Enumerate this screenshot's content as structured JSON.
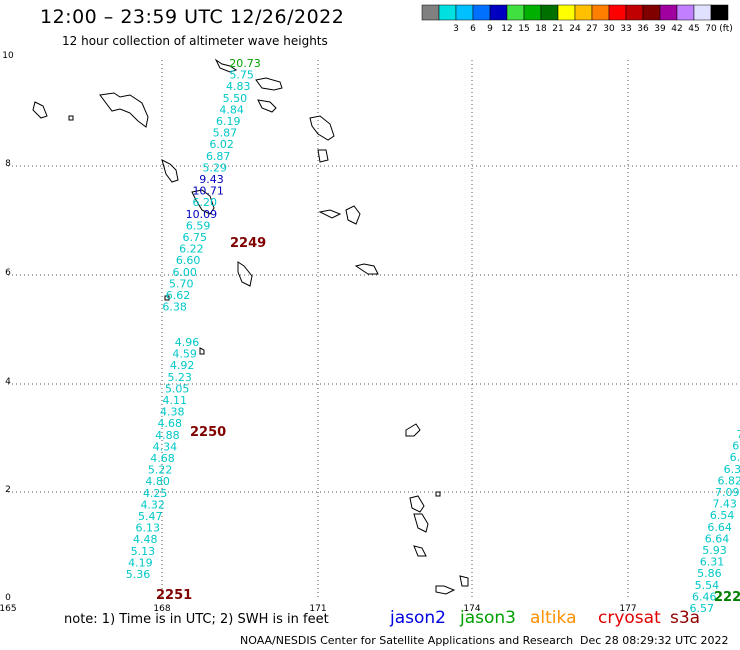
{
  "header": {
    "title": "12:00 – 23:59 UTC 12/26/2022",
    "subtitle": "12 hour collection of altimeter wave heights"
  },
  "legend": {
    "unit": "(ft)",
    "bins": [
      {
        "label": "",
        "color": "#808080"
      },
      {
        "label": "3",
        "color": "#00e0e0"
      },
      {
        "label": "6",
        "color": "#00c0ff"
      },
      {
        "label": "9",
        "color": "#0070ff"
      },
      {
        "label": "12",
        "color": "#0000c0"
      },
      {
        "label": "15",
        "color": "#40e040"
      },
      {
        "label": "18",
        "color": "#00b000"
      },
      {
        "label": "21",
        "color": "#007000"
      },
      {
        "label": "24",
        "color": "#ffff00"
      },
      {
        "label": "27",
        "color": "#ffc000"
      },
      {
        "label": "30",
        "color": "#ff8000"
      },
      {
        "label": "33",
        "color": "#ff0000"
      },
      {
        "label": "36",
        "color": "#c00000"
      },
      {
        "label": "39",
        "color": "#800000"
      },
      {
        "label": "42",
        "color": "#a000a0"
      },
      {
        "label": "45",
        "color": "#c080ff"
      },
      {
        "label": "70",
        "color": "#e0e0ff"
      },
      {
        "label": "",
        "color": "#000000"
      }
    ]
  },
  "axes": {
    "x_ticks": [
      "165",
      "168",
      "171",
      "174",
      "177"
    ],
    "y_ticks": [
      "0",
      "2",
      "4",
      "6",
      "8",
      "10"
    ]
  },
  "tracks": [
    {
      "id": "2249",
      "label_color": "#800000",
      "points": [
        {
          "v": "20.73",
          "c": "#00a000"
        },
        {
          "v": "5.75",
          "c": "#00c8c8"
        },
        {
          "v": "4.83",
          "c": "#00c8c8"
        },
        {
          "v": "5.50",
          "c": "#00c8c8"
        },
        {
          "v": "4.84",
          "c": "#00c8c8"
        },
        {
          "v": "6.19",
          "c": "#00c8c8"
        },
        {
          "v": "5.87",
          "c": "#00c8c8"
        },
        {
          "v": "6.02",
          "c": "#00c8c8"
        },
        {
          "v": "6.87",
          "c": "#00c8c8"
        },
        {
          "v": "5.29",
          "c": "#00c8c8"
        },
        {
          "v": "9.43",
          "c": "#0000c0"
        },
        {
          "v": "10.71",
          "c": "#0000c0"
        },
        {
          "v": "6.20",
          "c": "#00c8c8"
        },
        {
          "v": "10.09",
          "c": "#0000c0"
        },
        {
          "v": "6.59",
          "c": "#00c8c8"
        },
        {
          "v": "6.75",
          "c": "#00c8c8"
        },
        {
          "v": "6.22",
          "c": "#00c8c8"
        },
        {
          "v": "6.60",
          "c": "#00c8c8"
        },
        {
          "v": "6.00",
          "c": "#00c8c8"
        },
        {
          "v": "5.70",
          "c": "#00c8c8"
        },
        {
          "v": "6.62",
          "c": "#00c8c8"
        },
        {
          "v": "6.38",
          "c": "#00c8c8"
        }
      ]
    },
    {
      "id": "2250",
      "label_color": "#800000",
      "points": [
        {
          "v": "4.96",
          "c": "#00c8c8"
        },
        {
          "v": "4.59",
          "c": "#00c8c8"
        },
        {
          "v": "4.92",
          "c": "#00c8c8"
        },
        {
          "v": "5.23",
          "c": "#00c8c8"
        },
        {
          "v": "5.05",
          "c": "#00c8c8"
        },
        {
          "v": "4.11",
          "c": "#00c8c8"
        },
        {
          "v": "4.38",
          "c": "#00c8c8"
        },
        {
          "v": "4.68",
          "c": "#00c8c8"
        },
        {
          "v": "4.88",
          "c": "#00c8c8"
        },
        {
          "v": "4.34",
          "c": "#00c8c8"
        },
        {
          "v": "4.68",
          "c": "#00c8c8"
        },
        {
          "v": "5.22",
          "c": "#00c8c8"
        },
        {
          "v": "4.80",
          "c": "#00c8c8"
        },
        {
          "v": "4.25",
          "c": "#00c8c8"
        },
        {
          "v": "4.32",
          "c": "#00c8c8"
        },
        {
          "v": "5.47",
          "c": "#00c8c8"
        },
        {
          "v": "6.13",
          "c": "#00c8c8"
        },
        {
          "v": "4.48",
          "c": "#00c8c8"
        },
        {
          "v": "5.13",
          "c": "#00c8c8"
        },
        {
          "v": "4.19",
          "c": "#00c8c8"
        },
        {
          "v": "5.36",
          "c": "#00c8c8"
        }
      ]
    },
    {
      "id": "2251",
      "label_color": "#800000",
      "points": []
    },
    {
      "id": "222",
      "label_color": "#008000",
      "points": [
        {
          "v": "7",
          "c": "#00c8c8"
        },
        {
          "v": "6.",
          "c": "#00c8c8"
        },
        {
          "v": "6.",
          "c": "#00c8c8"
        },
        {
          "v": "6.3",
          "c": "#00c8c8"
        },
        {
          "v": "6.82",
          "c": "#00c8c8"
        },
        {
          "v": "7.09",
          "c": "#00c8c8"
        },
        {
          "v": "7.43",
          "c": "#00c8c8"
        },
        {
          "v": "6.54",
          "c": "#00c8c8"
        },
        {
          "v": "6.64",
          "c": "#00c8c8"
        },
        {
          "v": "6.64",
          "c": "#00c8c8"
        },
        {
          "v": "5.93",
          "c": "#00c8c8"
        },
        {
          "v": "6.31",
          "c": "#00c8c8"
        },
        {
          "v": "5.86",
          "c": "#00c8c8"
        },
        {
          "v": "5.54",
          "c": "#00c8c8"
        },
        {
          "v": "6.46",
          "c": "#00c8c8"
        },
        {
          "v": "6.57",
          "c": "#00c8c8"
        }
      ]
    }
  ],
  "footer": {
    "note": "note:  1) Time is in UTC; 2) SWH is in feet",
    "satellites": [
      {
        "name": "jason2",
        "color": "#0000e0"
      },
      {
        "name": "jason3",
        "color": "#00a000"
      },
      {
        "name": "altika",
        "color": "#ff9000"
      },
      {
        "name": "cryosat",
        "color": "#e00000"
      },
      {
        "name": "s3a",
        "color": "#900000"
      }
    ],
    "credit": "NOAA/NESDIS Center for Satellite Applications and Research",
    "timestamp": "Dec 28 08:29:32 UTC 2022"
  }
}
